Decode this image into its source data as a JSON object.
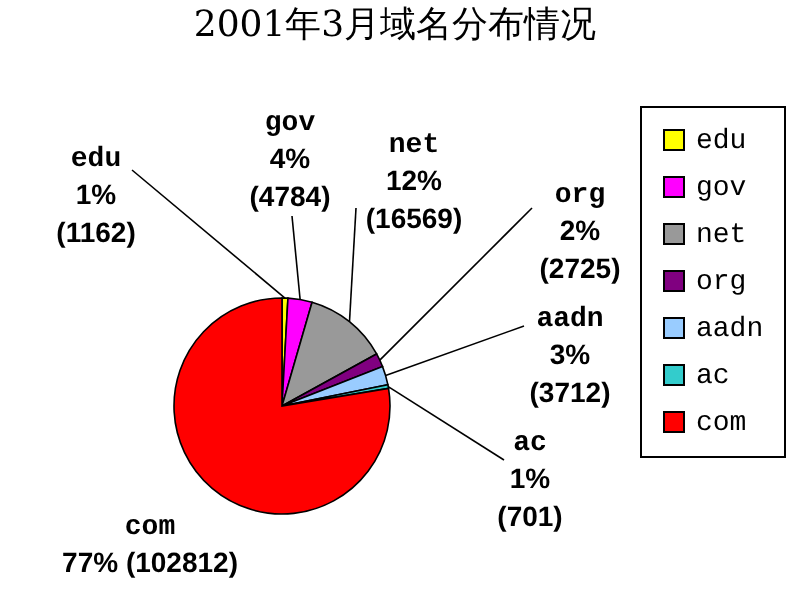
{
  "chart_data": {
    "type": "pie",
    "title": "2001年3月域名分布情况",
    "categories": [
      "edu",
      "gov",
      "net",
      "org",
      "aadn",
      "ac",
      "com"
    ],
    "values": [
      1162,
      4784,
      16569,
      2725,
      3712,
      701,
      102812
    ],
    "colors": [
      "#ffff00",
      "#ff00ff",
      "#999999",
      "#800080",
      "#99ccff",
      "#33cccc",
      "#ff0000"
    ],
    "value_labels": [
      "1%\n(1162)",
      "4%\n(4784)",
      "12%\n(16569)",
      "2%\n(2725)",
      "3%\n(3712)",
      "1%\n(701)",
      "77% (102812)"
    ],
    "legend": "right"
  }
}
